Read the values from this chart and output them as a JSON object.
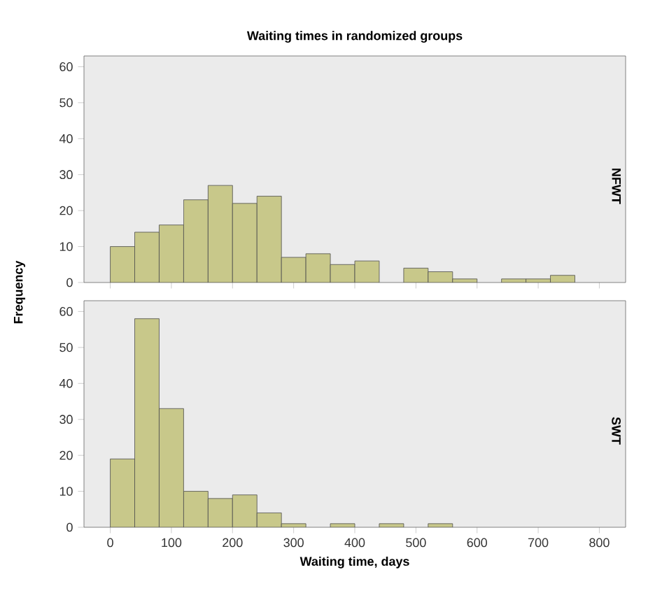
{
  "chart_data": [
    {
      "type": "histogram",
      "title": "Waiting times in randomized groups",
      "ylabel": "Frequency",
      "y2label": "NFWT",
      "bins": [
        0,
        40,
        80,
        120,
        160,
        200,
        240,
        280,
        320,
        360,
        400,
        440,
        480,
        520,
        560,
        600,
        640,
        680,
        720,
        760
      ],
      "values": [
        10,
        14,
        16,
        23,
        27,
        22,
        24,
        7,
        8,
        5,
        6,
        0,
        4,
        3,
        1,
        0,
        1,
        1,
        2
      ],
      "color": "#c8c88a",
      "xlim": [
        -43,
        843
      ],
      "ylim": [
        0,
        63
      ],
      "xticks": [
        0,
        100,
        200,
        300,
        400,
        500,
        600,
        700,
        800
      ],
      "yticks": [
        0,
        10,
        20,
        30,
        40,
        50,
        60
      ],
      "tick_labels": "y"
    },
    {
      "type": "histogram",
      "xlabel": "Waiting time, days",
      "y2label": "SWT",
      "bins": [
        0,
        40,
        80,
        120,
        160,
        200,
        240,
        280,
        320,
        360,
        400,
        440,
        480,
        520,
        560
      ],
      "values": [
        19,
        58,
        33,
        10,
        8,
        9,
        4,
        1,
        0,
        1,
        0,
        1,
        0,
        1
      ],
      "color": "#c8c88a",
      "xlim": [
        -43,
        843
      ],
      "ylim": [
        0,
        63
      ],
      "xticks": [
        0,
        100,
        200,
        300,
        400,
        500,
        600,
        700,
        800
      ],
      "yticks": [
        0,
        10,
        20,
        30,
        40,
        50,
        60
      ]
    }
  ]
}
